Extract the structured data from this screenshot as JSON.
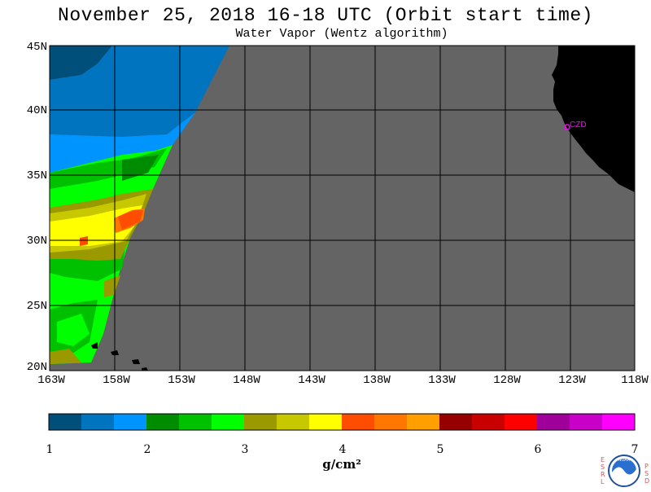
{
  "title": "November 25, 2018  16-18 UTC  (Orbit start time)",
  "subtitle": "Water Vapor (Wentz algorithm)",
  "map": {
    "lat_labels": [
      "45N",
      "40N",
      "35N",
      "30N",
      "25N",
      "20N"
    ],
    "lon_labels": [
      "163W",
      "158W",
      "153W",
      "148W",
      "143W",
      "138W",
      "133W",
      "128W",
      "123W",
      "118W"
    ],
    "station_label": "CZD",
    "colors": {
      "no_data": "#646464",
      "land": "#000000",
      "station": "#ff00ff",
      "grid": "#000000"
    }
  },
  "colorbar": {
    "colors": [
      "#004f7a",
      "#0074bf",
      "#0094ff",
      "#008c00",
      "#00c100",
      "#00ff00",
      "#9a9a00",
      "#c8c800",
      "#ffff00",
      "#ff4d00",
      "#ff7600",
      "#ffa000",
      "#960000",
      "#c80000",
      "#ff0000",
      "#a0009a",
      "#c800c8",
      "#ff00ff"
    ],
    "tick_labels": [
      "1",
      "2",
      "3",
      "4",
      "5",
      "6",
      "7"
    ],
    "units": "g/cm²"
  },
  "logo": {
    "side_left": "ESRL",
    "side_right": "PSD",
    "center": "NOAA"
  }
}
